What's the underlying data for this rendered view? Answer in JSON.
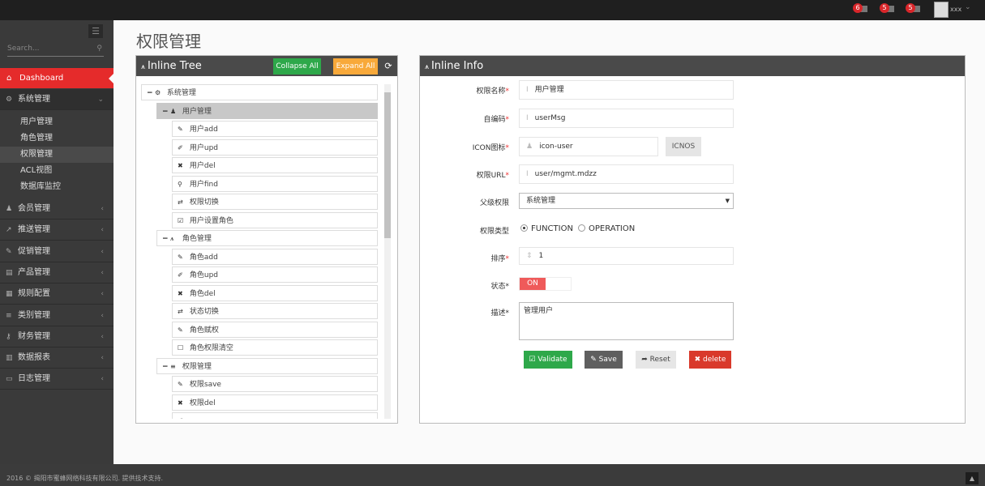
{
  "topbar": {
    "badges": [
      {
        "count": "6",
        "icon": "warning-icon"
      },
      {
        "count": "5",
        "icon": "envelope-icon"
      },
      {
        "count": "5",
        "icon": "tasks-icon"
      }
    ],
    "user": "xxx"
  },
  "sidebar": {
    "search_placeholder": "Search...",
    "dashboard": "Dashboard",
    "expanded": {
      "label": "系统管理",
      "icon": "cogs-icon"
    },
    "sub_items": [
      "用户管理",
      "角色管理",
      "权限管理",
      "ACL视图",
      "数据库监控"
    ],
    "active_sub": "权限管理",
    "menus": [
      {
        "label": "会员管理",
        "icon": "user-icon"
      },
      {
        "label": "推送管理",
        "icon": "share-icon"
      },
      {
        "label": "促销管理",
        "icon": "pencil-icon"
      },
      {
        "label": "产品管理",
        "icon": "book-icon"
      },
      {
        "label": "规则配置",
        "icon": "table-icon"
      },
      {
        "label": "类别管理",
        "icon": "list-icon"
      },
      {
        "label": "财务管理",
        "icon": "key-icon"
      },
      {
        "label": "数据报表",
        "icon": "bar-chart-icon"
      },
      {
        "label": "日志管理",
        "icon": "credit-card-icon"
      }
    ]
  },
  "page_title": "权限管理",
  "tree_panel": {
    "title": "Inline Tree",
    "collapse_all": "Collapse All",
    "expand_all": "Expand All",
    "nodes": [
      {
        "level": 0,
        "label": "系统管理",
        "icon": "cogs-icon",
        "expanded": true
      },
      {
        "level": 1,
        "label": "用户管理",
        "icon": "user-icon",
        "expanded": true,
        "selected": true
      },
      {
        "level": 2,
        "label": "用户add",
        "icon": "pencil-icon"
      },
      {
        "level": 2,
        "label": "用户upd",
        "icon": "edit-icon"
      },
      {
        "level": 2,
        "label": "用户del",
        "icon": "remove-icon"
      },
      {
        "level": 2,
        "label": "用户find",
        "icon": "search-icon"
      },
      {
        "level": 2,
        "label": "权限切换",
        "icon": "retweet-icon"
      },
      {
        "level": 2,
        "label": "用户设置角色",
        "icon": "check-icon"
      },
      {
        "level": 1,
        "label": "角色管理",
        "icon": "sitemap-icon",
        "expanded": true
      },
      {
        "level": 2,
        "label": "角色add",
        "icon": "pencil-icon"
      },
      {
        "level": 2,
        "label": "角色upd",
        "icon": "edit-icon"
      },
      {
        "level": 2,
        "label": "角色del",
        "icon": "remove-icon"
      },
      {
        "level": 2,
        "label": "状态切换",
        "icon": "retweet-icon"
      },
      {
        "level": 2,
        "label": "角色赋权",
        "icon": "pencil-icon"
      },
      {
        "level": 2,
        "label": "角色权限清空",
        "icon": "square-icon"
      },
      {
        "level": 1,
        "label": "权限管理",
        "icon": "list-icon",
        "expanded": true
      },
      {
        "level": 2,
        "label": "权限save",
        "icon": "pencil-icon"
      },
      {
        "level": 2,
        "label": "权限del",
        "icon": "remove-icon"
      },
      {
        "level": 2,
        "label": "",
        "icon": "edit-icon"
      }
    ]
  },
  "info_panel": {
    "title": "Inline Info",
    "fields": {
      "name": {
        "label": "权限名称",
        "value": "用户管理"
      },
      "code": {
        "label": "自编码",
        "value": "userMsg"
      },
      "icon": {
        "label": "ICON图标",
        "value": "icon-user",
        "button": "ICNOS"
      },
      "url": {
        "label": "权限URL",
        "value": "user/mgmt.mdzz"
      },
      "parent": {
        "label": "父级权限",
        "value": "系统管理"
      },
      "type": {
        "label": "权限类型",
        "options": [
          "FUNCTION",
          "OPERATION"
        ],
        "selected": "FUNCTION"
      },
      "order": {
        "label": "排序",
        "value": "1"
      },
      "status": {
        "label": "状态",
        "value": "ON",
        "on": true
      },
      "desc": {
        "label": "描述",
        "value": "管理用户"
      }
    },
    "buttons": {
      "validate": "Validate",
      "save": "Save",
      "reset": "Reset",
      "delete": "delete"
    }
  },
  "footer": {
    "text": "2016 © 揭阳市蜜蜂网络科技有限公司. 提供技术支持."
  },
  "colors": {
    "accent": "#e52b2b",
    "green": "#2ea84a",
    "orange": "#f8a93a",
    "dark": "#4a4a4a",
    "delete": "#d9392b"
  }
}
